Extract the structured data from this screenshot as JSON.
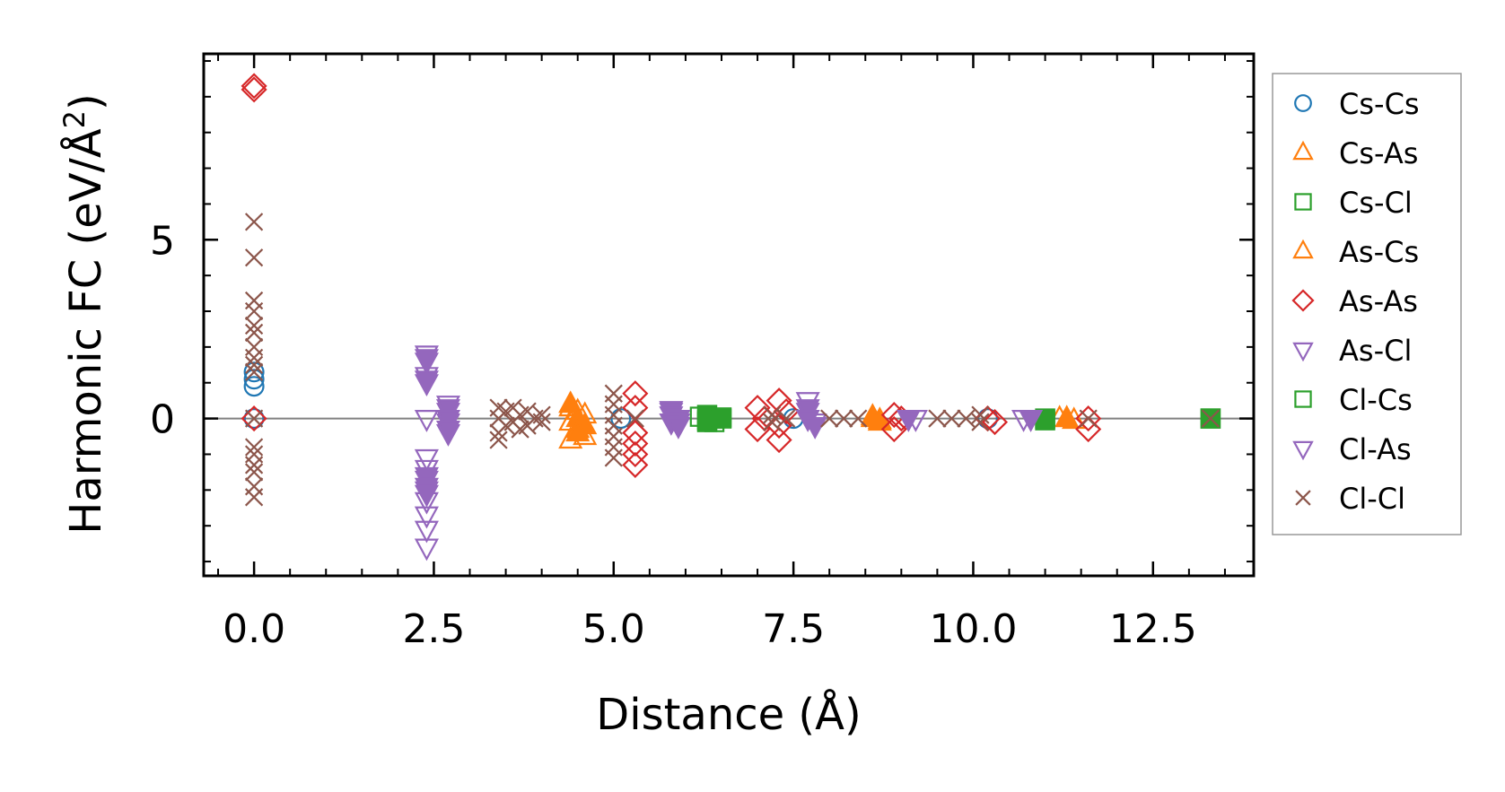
{
  "chart_data": {
    "type": "scatter",
    "title": "",
    "xlabel": "Distance (Å)",
    "ylabel_main": "Harmonic FC (eV/Å",
    "ylabel_sup": "2",
    "ylabel_close": ")",
    "xlim": [
      -0.7,
      13.9
    ],
    "ylim": [
      -4.4,
      10.2
    ],
    "xticks": [
      0.0,
      2.5,
      5.0,
      7.5,
      10.0,
      12.5
    ],
    "xtick_labels": [
      "0.0",
      "2.5",
      "5.0",
      "7.5",
      "10.0",
      "12.5"
    ],
    "yticks": [
      0,
      5
    ],
    "ytick_labels": [
      "0",
      "5"
    ],
    "x_minor_step": 0.5,
    "y_minor_step": 1,
    "zero_line": true,
    "legend_position": "right outside",
    "series": [
      {
        "name": "Cs-Cs",
        "marker": "circle",
        "color": "#1f77b4",
        "filled": false,
        "points": [
          [
            0,
            1.3
          ],
          [
            0,
            1.1
          ],
          [
            0,
            0.9
          ],
          [
            0,
            0
          ],
          [
            5.1,
            0
          ],
          [
            7.5,
            0
          ],
          [
            10.2,
            0
          ]
        ]
      },
      {
        "name": "Cs-As",
        "marker": "triangle-up",
        "color": "#ff7f0e",
        "filled": false,
        "points": [
          [
            4.4,
            0.3
          ],
          [
            4.5,
            0.2
          ],
          [
            4.6,
            0.1
          ],
          [
            4.4,
            -0.1
          ],
          [
            4.5,
            -0.3
          ],
          [
            4.6,
            -0.5
          ],
          [
            4.4,
            -0.6
          ],
          [
            8.6,
            0.05
          ],
          [
            8.7,
            -0.1
          ],
          [
            11.2,
            0
          ],
          [
            11.4,
            -0.05
          ]
        ]
      },
      {
        "name": "Cs-Cl",
        "marker": "square",
        "color": "#2ca02c",
        "filled": false,
        "points": [
          [
            6.2,
            0.05
          ],
          [
            6.3,
            -0.05
          ],
          [
            6.4,
            0
          ],
          [
            6.5,
            0.03
          ],
          [
            6.4,
            -0.1
          ],
          [
            11.0,
            0
          ],
          [
            13.3,
            0
          ]
        ]
      },
      {
        "name": "As-Cs",
        "marker": "triangle-up",
        "color": "#ff7f0e",
        "filled": true,
        "points": [
          [
            4.4,
            0.4
          ],
          [
            4.5,
            0
          ],
          [
            4.6,
            -0.2
          ],
          [
            4.5,
            -0.4
          ],
          [
            8.6,
            0
          ],
          [
            8.7,
            -0.05
          ],
          [
            11.3,
            0
          ]
        ]
      },
      {
        "name": "As-As",
        "marker": "diamond",
        "color": "#d62728",
        "filled": false,
        "points": [
          [
            0,
            9.3
          ],
          [
            0,
            9.2
          ],
          [
            0,
            0
          ],
          [
            5.3,
            0.7
          ],
          [
            5.3,
            0.3
          ],
          [
            5.3,
            -0.4
          ],
          [
            5.3,
            -0.7
          ],
          [
            5.3,
            -1.0
          ],
          [
            5.3,
            -1.3
          ],
          [
            7.0,
            0.3
          ],
          [
            7.1,
            0
          ],
          [
            7.0,
            -0.3
          ],
          [
            7.3,
            0.5
          ],
          [
            7.4,
            0.2
          ],
          [
            7.3,
            -0.2
          ],
          [
            7.3,
            -0.6
          ],
          [
            8.9,
            0.1
          ],
          [
            8.9,
            -0.3
          ],
          [
            9.0,
            0
          ],
          [
            10.2,
            0
          ],
          [
            10.3,
            -0.1
          ],
          [
            11.6,
            0
          ],
          [
            11.6,
            -0.3
          ]
        ]
      },
      {
        "name": "As-Cl",
        "marker": "triangle-down",
        "color": "#9467bd",
        "filled": false,
        "points": [
          [
            2.4,
            1.8
          ],
          [
            2.4,
            1.6
          ],
          [
            2.4,
            1.2
          ],
          [
            2.4,
            1.0
          ],
          [
            2.4,
            0
          ],
          [
            2.4,
            -1.1
          ],
          [
            2.4,
            -1.4
          ],
          [
            2.4,
            -1.7
          ],
          [
            2.4,
            -2.0
          ],
          [
            2.4,
            -2.3
          ],
          [
            2.4,
            -2.7
          ],
          [
            2.4,
            -3.1
          ],
          [
            2.4,
            -3.6
          ],
          [
            2.7,
            0.4
          ],
          [
            2.7,
            0.2
          ],
          [
            2.7,
            -0.1
          ],
          [
            2.7,
            -0.4
          ],
          [
            5.8,
            0.2
          ],
          [
            5.9,
            -0.1
          ],
          [
            7.7,
            0.5
          ],
          [
            7.7,
            0.2
          ],
          [
            7.8,
            -0.1
          ],
          [
            9.2,
            0
          ],
          [
            10.7,
            0
          ]
        ]
      },
      {
        "name": "Cl-Cs",
        "marker": "square",
        "color": "#2ca02c",
        "filled": true,
        "points": [
          [
            6.3,
            0.1
          ],
          [
            6.3,
            -0.1
          ],
          [
            6.4,
            0
          ],
          [
            6.5,
            0
          ],
          [
            11.0,
            -0.05
          ],
          [
            13.3,
            0
          ]
        ]
      },
      {
        "name": "Cl-As",
        "marker": "triangle-down",
        "color": "#9467bd",
        "filled": true,
        "points": [
          [
            2.4,
            1.7
          ],
          [
            2.4,
            1.1
          ],
          [
            2.4,
            -1.6
          ],
          [
            2.4,
            -1.9
          ],
          [
            2.4,
            -2.1
          ],
          [
            2.7,
            0.3
          ],
          [
            2.7,
            0
          ],
          [
            2.7,
            -0.3
          ],
          [
            5.8,
            0.25
          ],
          [
            5.8,
            0.1
          ],
          [
            5.9,
            0
          ],
          [
            5.8,
            -0.1
          ],
          [
            5.9,
            -0.2
          ],
          [
            7.7,
            0.3
          ],
          [
            7.7,
            0
          ],
          [
            7.8,
            -0.2
          ],
          [
            9.1,
            0
          ],
          [
            10.8,
            0
          ]
        ]
      },
      {
        "name": "Cl-Cl",
        "marker": "x",
        "color": "#8c564b",
        "filled": false,
        "points": [
          [
            0,
            5.5
          ],
          [
            0,
            4.5
          ],
          [
            0,
            3.3
          ],
          [
            0,
            3.0
          ],
          [
            0,
            2.6
          ],
          [
            0,
            2.4
          ],
          [
            0,
            2.0
          ],
          [
            0,
            1.7
          ],
          [
            0,
            1.5
          ],
          [
            0,
            1.3
          ],
          [
            0,
            0
          ],
          [
            0,
            -0.8
          ],
          [
            0,
            -1.0
          ],
          [
            0,
            -1.3
          ],
          [
            0,
            -1.5
          ],
          [
            0,
            -1.9
          ],
          [
            0,
            -2.2
          ],
          [
            3.4,
            0.3
          ],
          [
            3.5,
            0.2
          ],
          [
            3.4,
            0
          ],
          [
            3.5,
            -0.2
          ],
          [
            3.4,
            -0.4
          ],
          [
            3.4,
            -0.6
          ],
          [
            3.6,
            0.3
          ],
          [
            3.7,
            0.1
          ],
          [
            3.6,
            -0.1
          ],
          [
            3.7,
            -0.3
          ],
          [
            3.8,
            0.2
          ],
          [
            3.9,
            0
          ],
          [
            3.8,
            -0.2
          ],
          [
            4.0,
            0.1
          ],
          [
            4.0,
            -0.1
          ],
          [
            5.0,
            0.7
          ],
          [
            5.0,
            0.4
          ],
          [
            5.0,
            0.1
          ],
          [
            5.0,
            -0.2
          ],
          [
            5.0,
            -0.5
          ],
          [
            5.0,
            -0.8
          ],
          [
            5.0,
            -1.1
          ],
          [
            5.3,
            0
          ],
          [
            7.2,
            0.1
          ],
          [
            7.2,
            -0.1
          ],
          [
            7.4,
            0
          ],
          [
            8.0,
            0
          ],
          [
            8.2,
            0
          ],
          [
            8.4,
            0
          ],
          [
            9.5,
            0
          ],
          [
            9.7,
            0
          ],
          [
            9.9,
            0
          ],
          [
            10.1,
            0.1
          ],
          [
            10.1,
            -0.1
          ],
          [
            11.6,
            0
          ],
          [
            13.3,
            0
          ]
        ]
      }
    ]
  }
}
